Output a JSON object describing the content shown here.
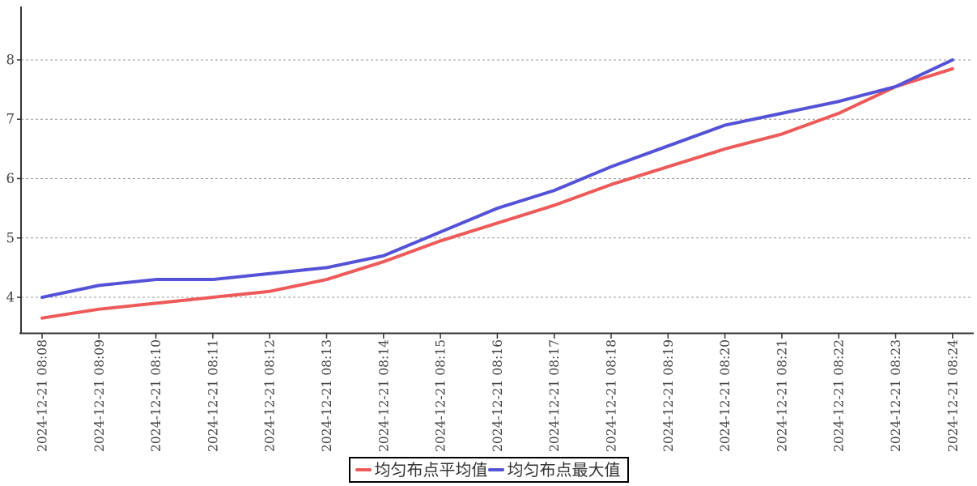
{
  "chart_data": {
    "type": "line",
    "title": "",
    "xlabel": "",
    "ylabel": "",
    "categories": [
      "2024-12-21 08:08",
      "2024-12-21 08:09",
      "2024-12-21 08:10",
      "2024-12-21 08:11",
      "2024-12-21 08:12",
      "2024-12-21 08:13",
      "2024-12-21 08:14",
      "2024-12-21 08:15",
      "2024-12-21 08:16",
      "2024-12-21 08:17",
      "2024-12-21 08:18",
      "2024-12-21 08:19",
      "2024-12-21 08:20",
      "2024-12-21 08:21",
      "2024-12-21 08:22",
      "2024-12-21 08:23",
      "2024-12-21 08:24"
    ],
    "series": [
      {
        "name": "均匀布点平均值",
        "color": "#ee5a5a",
        "values": [
          3.65,
          3.8,
          3.9,
          4.0,
          4.1,
          4.3,
          4.6,
          4.95,
          5.25,
          5.55,
          5.9,
          6.2,
          6.5,
          6.75,
          7.1,
          7.55,
          7.85
        ]
      },
      {
        "name": "均匀布点最大值",
        "color": "#5452d6",
        "values": [
          4.0,
          4.2,
          4.3,
          4.3,
          4.4,
          4.5,
          4.7,
          5.1,
          5.5,
          5.8,
          6.2,
          6.55,
          6.9,
          7.1,
          7.3,
          7.55,
          8.0
        ]
      }
    ],
    "y_ticks": [
      4,
      5,
      6,
      7,
      8
    ],
    "ylim": [
      3.4,
      8.9
    ],
    "grid": "horizontal-dashed",
    "legend_position": "bottom-center",
    "axis_color": "#333333",
    "grid_color": "#999999",
    "tick_label_color": "#444444"
  }
}
